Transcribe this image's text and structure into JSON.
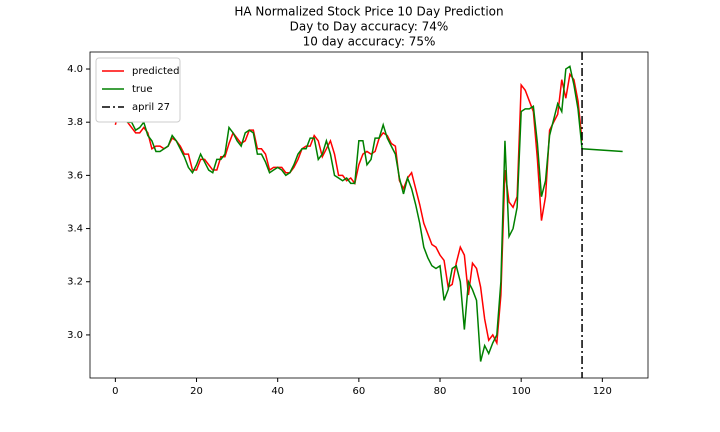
{
  "chart_data": {
    "type": "line",
    "title": "HA Normalized Stock Price 10 Day Prediction",
    "subtitles": [
      "Day to Day accuracy: 74%",
      "10 day accuracy: 75%"
    ],
    "x": [
      0,
      1,
      2,
      3,
      4,
      5,
      6,
      7,
      8,
      9,
      10,
      11,
      12,
      13,
      14,
      15,
      16,
      17,
      18,
      19,
      20,
      21,
      22,
      23,
      24,
      25,
      26,
      27,
      28,
      29,
      30,
      31,
      32,
      33,
      34,
      35,
      36,
      37,
      38,
      39,
      40,
      41,
      42,
      43,
      44,
      45,
      46,
      47,
      48,
      49,
      50,
      51,
      52,
      53,
      54,
      55,
      56,
      57,
      58,
      59,
      60,
      61,
      62,
      63,
      64,
      65,
      66,
      67,
      68,
      69,
      70,
      71,
      72,
      73,
      74,
      75,
      76,
      77,
      78,
      79,
      80,
      81,
      82,
      83,
      84,
      85,
      86,
      87,
      88,
      89,
      90,
      91,
      92,
      93,
      94,
      95,
      96,
      97,
      98,
      99,
      100,
      101,
      102,
      103,
      104,
      105,
      106,
      107,
      108,
      109,
      110,
      111,
      112,
      113,
      114,
      115,
      125
    ],
    "series": [
      {
        "name": "predicted",
        "color": "#ff0000",
        "values": [
          3.79,
          3.85,
          3.81,
          3.8,
          3.78,
          3.76,
          3.76,
          3.78,
          3.76,
          3.7,
          3.71,
          3.71,
          3.7,
          3.71,
          3.74,
          3.73,
          3.71,
          3.68,
          3.68,
          3.62,
          3.62,
          3.66,
          3.66,
          3.64,
          3.62,
          3.62,
          3.67,
          3.67,
          3.72,
          3.76,
          3.74,
          3.72,
          3.73,
          3.77,
          3.77,
          3.7,
          3.7,
          3.68,
          3.62,
          3.63,
          3.63,
          3.63,
          3.61,
          3.61,
          3.63,
          3.66,
          3.7,
          3.71,
          3.71,
          3.75,
          3.73,
          3.67,
          3.7,
          3.73,
          3.68,
          3.6,
          3.6,
          3.58,
          3.59,
          3.57,
          3.64,
          3.68,
          3.69,
          3.68,
          3.69,
          3.74,
          3.76,
          3.75,
          3.72,
          3.71,
          3.58,
          3.55,
          3.59,
          3.61,
          3.55,
          3.49,
          3.42,
          3.38,
          3.34,
          3.33,
          3.3,
          3.28,
          3.18,
          3.19,
          3.27,
          3.33,
          3.3,
          3.15,
          3.27,
          3.25,
          3.18,
          3.06,
          2.98,
          3.0,
          2.97,
          3.15,
          3.62,
          3.5,
          3.48,
          3.52,
          3.94,
          3.92,
          3.88,
          3.84,
          3.66,
          3.43,
          3.52,
          3.77,
          3.8,
          3.83,
          3.96,
          3.89,
          3.98,
          3.96,
          3.88,
          3.73,
          null
        ]
      },
      {
        "name": "true",
        "color": "#008000",
        "values": [
          3.83,
          3.84,
          3.82,
          3.8,
          3.8,
          3.77,
          3.78,
          3.8,
          3.75,
          3.73,
          3.69,
          3.69,
          3.7,
          3.71,
          3.75,
          3.73,
          3.7,
          3.67,
          3.63,
          3.61,
          3.64,
          3.68,
          3.65,
          3.62,
          3.61,
          3.66,
          3.66,
          3.68,
          3.78,
          3.76,
          3.73,
          3.71,
          3.76,
          3.77,
          3.76,
          3.68,
          3.68,
          3.65,
          3.61,
          3.62,
          3.63,
          3.62,
          3.6,
          3.61,
          3.64,
          3.68,
          3.7,
          3.7,
          3.74,
          3.74,
          3.66,
          3.68,
          3.73,
          3.68,
          3.6,
          3.59,
          3.58,
          3.59,
          3.57,
          3.57,
          3.73,
          3.73,
          3.64,
          3.66,
          3.74,
          3.74,
          3.79,
          3.74,
          3.71,
          3.68,
          3.59,
          3.53,
          3.59,
          3.55,
          3.49,
          3.42,
          3.33,
          3.29,
          3.26,
          3.25,
          3.26,
          3.13,
          3.17,
          3.25,
          3.26,
          3.2,
          3.02,
          3.2,
          3.17,
          3.13,
          2.9,
          2.96,
          2.93,
          2.97,
          3.0,
          3.2,
          3.73,
          3.37,
          3.4,
          3.48,
          3.84,
          3.85,
          3.85,
          3.86,
          3.72,
          3.52,
          3.58,
          3.75,
          3.81,
          3.87,
          3.84,
          4.0,
          4.01,
          3.94,
          3.85,
          3.7,
          3.69
        ]
      }
    ],
    "vline": {
      "name": "april 27",
      "x": 115,
      "color": "#000000"
    },
    "xlim": [
      -6.25,
      131.25
    ],
    "ylim": [
      2.838,
      4.064
    ],
    "xticks": [
      0,
      20,
      40,
      60,
      80,
      100,
      120
    ],
    "yticks": [
      {
        "value": 3.0,
        "label": "3.0"
      },
      3.2,
      3.4,
      3.6,
      3.8,
      {
        "value": 4.0,
        "label": "4.0"
      }
    ],
    "legend": "upper left"
  }
}
